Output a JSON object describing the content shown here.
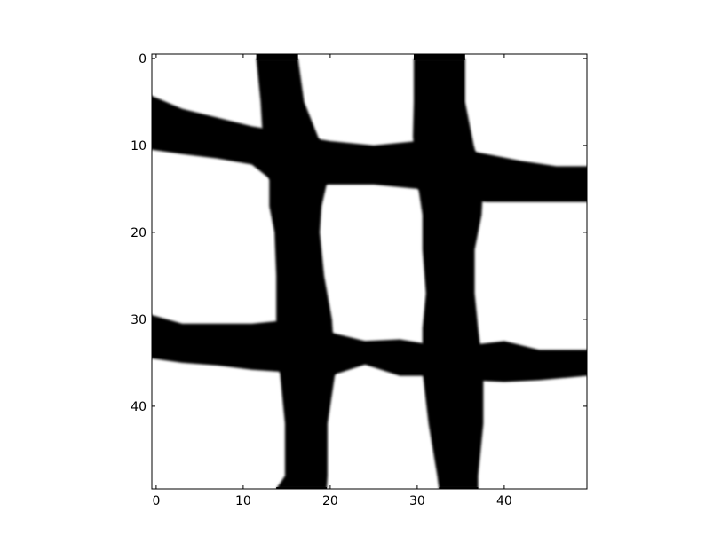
{
  "chart_data": {
    "type": "heatmap",
    "colormap": "gray",
    "title": "",
    "xlabel": "",
    "ylabel": "",
    "xlim": [
      -0.5,
      49.5
    ],
    "ylim": [
      49.5,
      -0.5
    ],
    "grid": false,
    "x_ticks": [
      0,
      10,
      20,
      30,
      40
    ],
    "y_ticks": [
      0,
      10,
      20,
      30,
      40
    ],
    "x_tick_labels": [
      "0",
      "10",
      "20",
      "30",
      "40"
    ],
    "y_tick_labels": [
      "0",
      "10",
      "20",
      "30",
      "40"
    ],
    "bands": {
      "vertical": [
        {
          "name": "left-vertical-band",
          "left": [
            [
              0,
              11.5
            ],
            [
              5,
              12.0
            ],
            [
              10,
              12.3
            ],
            [
              14,
              13.0
            ],
            [
              17,
              13.0
            ],
            [
              20,
              13.6
            ],
            [
              25,
              13.8
            ],
            [
              30,
              13.8
            ],
            [
              36,
              14.2
            ],
            [
              42,
              14.8
            ],
            [
              48,
              14.8
            ],
            [
              49.5,
              13.8
            ]
          ],
          "right": [
            [
              0,
              16.3
            ],
            [
              5,
              17.0
            ],
            [
              10,
              19.0
            ],
            [
              14,
              19.7
            ],
            [
              17,
              19.0
            ],
            [
              20,
              18.8
            ],
            [
              25,
              19.3
            ],
            [
              30,
              20.2
            ],
            [
              36,
              20.6
            ],
            [
              42,
              19.7
            ],
            [
              48,
              19.7
            ],
            [
              49.5,
              19.6
            ]
          ]
        },
        {
          "name": "right-vertical-band",
          "left": [
            [
              0,
              29.6
            ],
            [
              5,
              29.6
            ],
            [
              9,
              29.5
            ],
            [
              14,
              30.0
            ],
            [
              18,
              30.6
            ],
            [
              22,
              30.6
            ],
            [
              27,
              31.0
            ],
            [
              31,
              30.6
            ],
            [
              36,
              30.6
            ],
            [
              42,
              31.3
            ],
            [
              48,
              32.3
            ],
            [
              49.5,
              32.5
            ]
          ],
          "right": [
            [
              0,
              35.5
            ],
            [
              5,
              35.5
            ],
            [
              10,
              36.5
            ],
            [
              14,
              37.6
            ],
            [
              18,
              37.4
            ],
            [
              22,
              36.6
            ],
            [
              27,
              36.6
            ],
            [
              31,
              37.0
            ],
            [
              36,
              37.6
            ],
            [
              42,
              37.6
            ],
            [
              48,
              37.0
            ],
            [
              49.5,
              37.0
            ]
          ]
        }
      ],
      "horizontal": [
        {
          "name": "upper-horizontal-band",
          "top": [
            [
              -0.5,
              4.3
            ],
            [
              3,
              5.8
            ],
            [
              7,
              6.8
            ],
            [
              11,
              7.8
            ],
            [
              14,
              8.3
            ],
            [
              17,
              9.0
            ],
            [
              20,
              9.5
            ],
            [
              25,
              10.0
            ],
            [
              30,
              9.5
            ],
            [
              34,
              10.2
            ],
            [
              38,
              11.0
            ],
            [
              42,
              11.8
            ],
            [
              46,
              12.4
            ],
            [
              49.5,
              12.4
            ]
          ],
          "bottom": [
            [
              -0.5,
              10.5
            ],
            [
              3,
              11.0
            ],
            [
              7,
              11.5
            ],
            [
              11,
              12.2
            ],
            [
              13,
              13.8
            ],
            [
              16,
              14.5
            ],
            [
              20,
              14.5
            ],
            [
              25,
              14.5
            ],
            [
              30,
              15.0
            ],
            [
              34,
              16.2
            ],
            [
              38,
              16.5
            ],
            [
              42,
              16.5
            ],
            [
              46,
              16.5
            ],
            [
              49.5,
              16.5
            ]
          ]
        },
        {
          "name": "lower-horizontal-band",
          "top": [
            [
              -0.5,
              29.5
            ],
            [
              3,
              30.5
            ],
            [
              7,
              30.5
            ],
            [
              11,
              30.5
            ],
            [
              14,
              30.2
            ],
            [
              17,
              31.0
            ],
            [
              20,
              31.5
            ],
            [
              24,
              32.5
            ],
            [
              28,
              32.3
            ],
            [
              32,
              33.0
            ],
            [
              36,
              33.0
            ],
            [
              40,
              32.5
            ],
            [
              44,
              33.5
            ],
            [
              49.5,
              33.5
            ]
          ],
          "bottom": [
            [
              -0.5,
              34.5
            ],
            [
              3,
              35.0
            ],
            [
              7,
              35.3
            ],
            [
              11,
              35.8
            ],
            [
              14,
              36.0
            ],
            [
              17,
              36.5
            ],
            [
              20,
              36.5
            ],
            [
              24,
              35.2
            ],
            [
              28,
              36.5
            ],
            [
              32,
              36.5
            ],
            [
              36,
              37.0
            ],
            [
              40,
              37.2
            ],
            [
              44,
              37.0
            ],
            [
              49.5,
              36.5
            ]
          ]
        }
      ]
    }
  }
}
